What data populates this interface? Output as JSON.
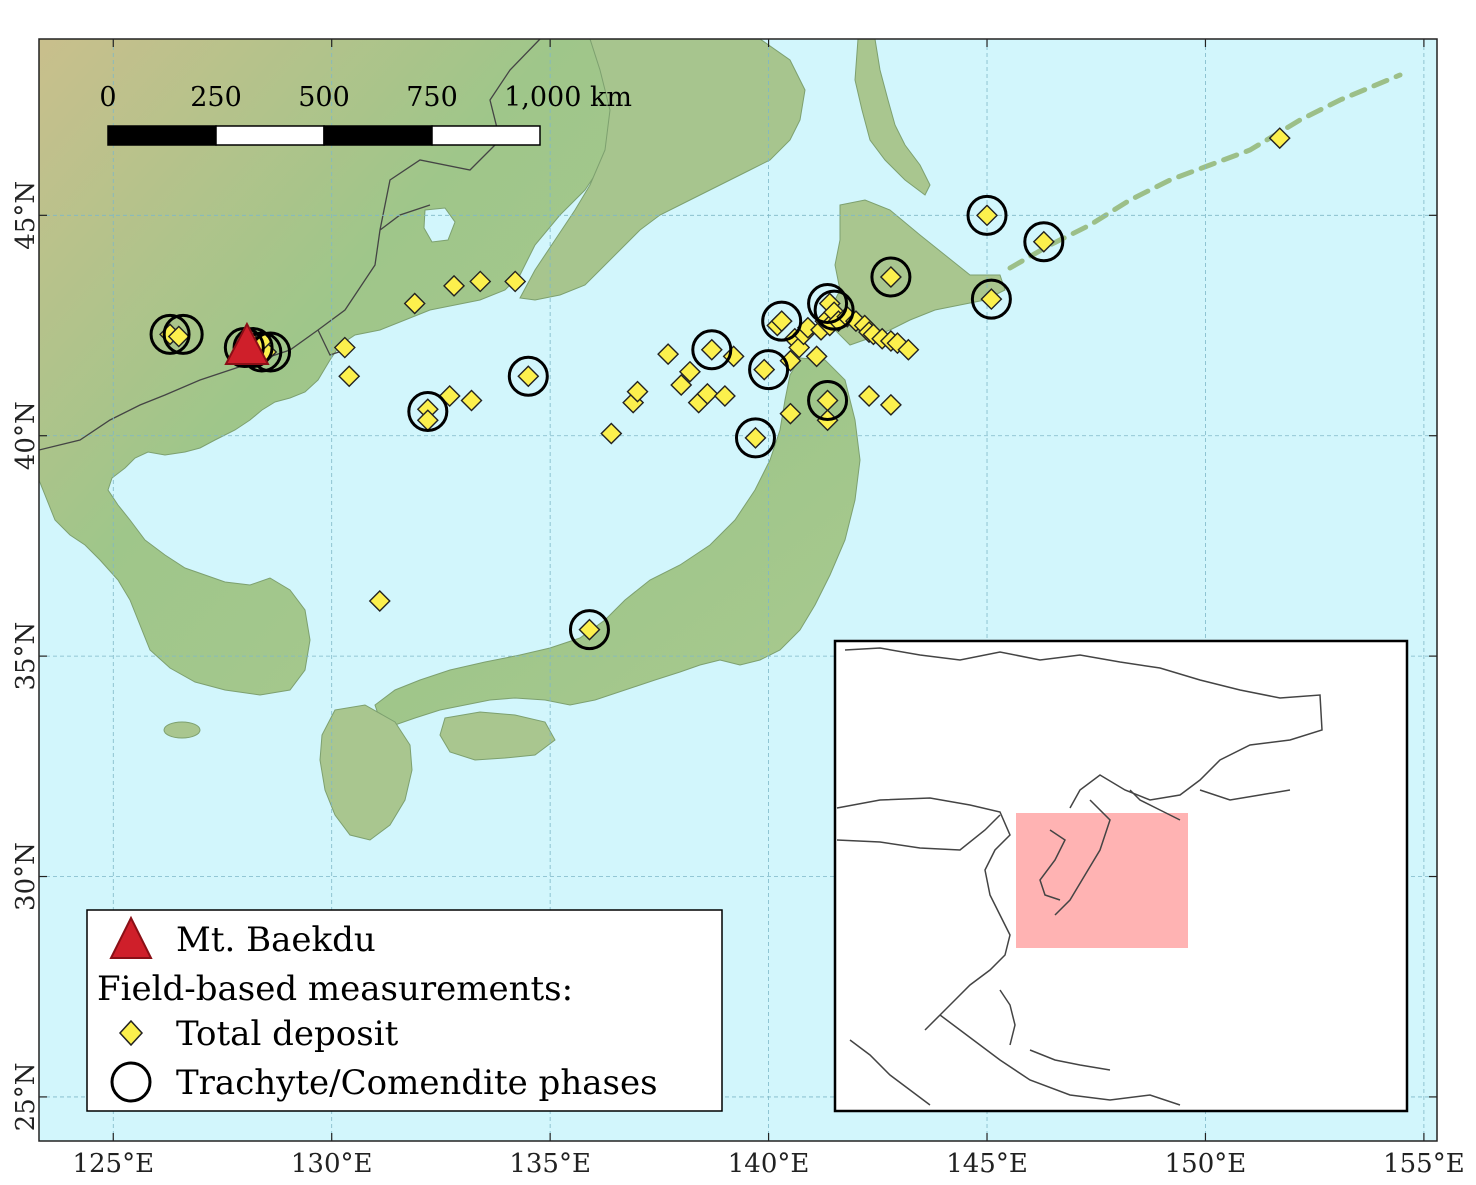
{
  "scale_bar": {
    "labels": [
      "0",
      "250",
      "500",
      "750",
      "1,000 km"
    ]
  },
  "axes": {
    "lon_ticks": [
      "125°E",
      "130°E",
      "135°E",
      "140°E",
      "145°E",
      "150°E",
      "155°E"
    ],
    "lat_ticks": [
      "45°N",
      "40°N",
      "35°N",
      "30°N",
      "25°N"
    ],
    "lon_values": [
      125,
      130,
      135,
      140,
      145,
      150,
      155
    ],
    "lat_values": [
      45,
      40,
      35,
      30,
      25
    ],
    "extent": {
      "lon": [
        123.3,
        155.3
      ],
      "lat": [
        24.0,
        49.0
      ]
    },
    "grid": true
  },
  "legend": {
    "volcano_label": "Mt. Baekdu",
    "section_title": "Field-based measurements:",
    "deposit_label": "Total deposit",
    "phase_label": "Trachyte/Comendite phases"
  },
  "volcano": {
    "lon": 128.06,
    "lat": 41.99
  },
  "deposits": [
    [
      126.3,
      42.3
    ],
    [
      126.5,
      42.25
    ],
    [
      128.2,
      42.1
    ],
    [
      128.35,
      42.0
    ],
    [
      128.5,
      41.9
    ],
    [
      128.4,
      42.15
    ],
    [
      130.3,
      42.0
    ],
    [
      130.4,
      41.35
    ],
    [
      131.9,
      43.0
    ],
    [
      132.8,
      43.4
    ],
    [
      133.4,
      43.5
    ],
    [
      134.2,
      43.5
    ],
    [
      132.2,
      40.6
    ],
    [
      132.2,
      40.35
    ],
    [
      132.7,
      40.9
    ],
    [
      133.2,
      40.8
    ],
    [
      134.5,
      41.35
    ],
    [
      131.1,
      36.25
    ],
    [
      135.9,
      35.6
    ],
    [
      136.4,
      40.05
    ],
    [
      136.9,
      40.75
    ],
    [
      137.0,
      41.0
    ],
    [
      137.7,
      41.85
    ],
    [
      138.0,
      41.15
    ],
    [
      138.2,
      41.45
    ],
    [
      138.4,
      40.75
    ],
    [
      138.6,
      40.95
    ],
    [
      138.7,
      41.95
    ],
    [
      139.0,
      40.9
    ],
    [
      139.2,
      41.8
    ],
    [
      139.7,
      39.95
    ],
    [
      139.9,
      41.5
    ],
    [
      140.2,
      42.5
    ],
    [
      140.3,
      42.6
    ],
    [
      140.5,
      41.7
    ],
    [
      140.5,
      40.5
    ],
    [
      140.6,
      42.2
    ],
    [
      140.7,
      42.0
    ],
    [
      140.8,
      42.3
    ],
    [
      140.9,
      42.45
    ],
    [
      141.1,
      41.8
    ],
    [
      141.2,
      42.4
    ],
    [
      141.3,
      42.6
    ],
    [
      141.4,
      42.5
    ],
    [
      141.35,
      40.8
    ],
    [
      141.35,
      40.35
    ],
    [
      141.4,
      43.0
    ],
    [
      141.5,
      42.8
    ],
    [
      141.6,
      42.6
    ],
    [
      141.8,
      42.7
    ],
    [
      142.0,
      42.6
    ],
    [
      142.2,
      42.5
    ],
    [
      142.3,
      42.35
    ],
    [
      142.4,
      42.3
    ],
    [
      142.6,
      42.2
    ],
    [
      142.8,
      42.15
    ],
    [
      142.95,
      42.1
    ],
    [
      143.2,
      41.95
    ],
    [
      142.3,
      40.9
    ],
    [
      142.8,
      40.7
    ],
    [
      142.8,
      43.6
    ],
    [
      145.0,
      45.0
    ],
    [
      146.3,
      44.4
    ],
    [
      145.1,
      43.1
    ],
    [
      151.7,
      46.75
    ]
  ],
  "phases": [
    [
      126.3,
      42.3
    ],
    [
      126.6,
      42.3
    ],
    [
      128.0,
      42.0
    ],
    [
      128.2,
      42.0
    ],
    [
      128.4,
      41.9
    ],
    [
      128.6,
      41.9
    ],
    [
      132.2,
      40.55
    ],
    [
      134.5,
      41.35
    ],
    [
      135.9,
      35.6
    ],
    [
      138.7,
      41.95
    ],
    [
      139.7,
      39.95
    ],
    [
      140.0,
      41.5
    ],
    [
      140.3,
      42.6
    ],
    [
      141.35,
      43.0
    ],
    [
      141.5,
      42.85
    ],
    [
      141.35,
      40.8
    ],
    [
      142.8,
      43.6
    ],
    [
      145.0,
      45.0
    ],
    [
      146.3,
      44.4
    ],
    [
      145.1,
      43.1
    ]
  ],
  "colors": {
    "sea": "#d2f6fc",
    "land_low": "#9bc486",
    "land_mid": "#c5c98f",
    "land_high": "#c8a47e",
    "deposit_fill": "#fcf04d",
    "volcano_fill": "#cf1f2a",
    "inset_highlight": "#ff9a9a",
    "grid": "#7fb8c7"
  }
}
